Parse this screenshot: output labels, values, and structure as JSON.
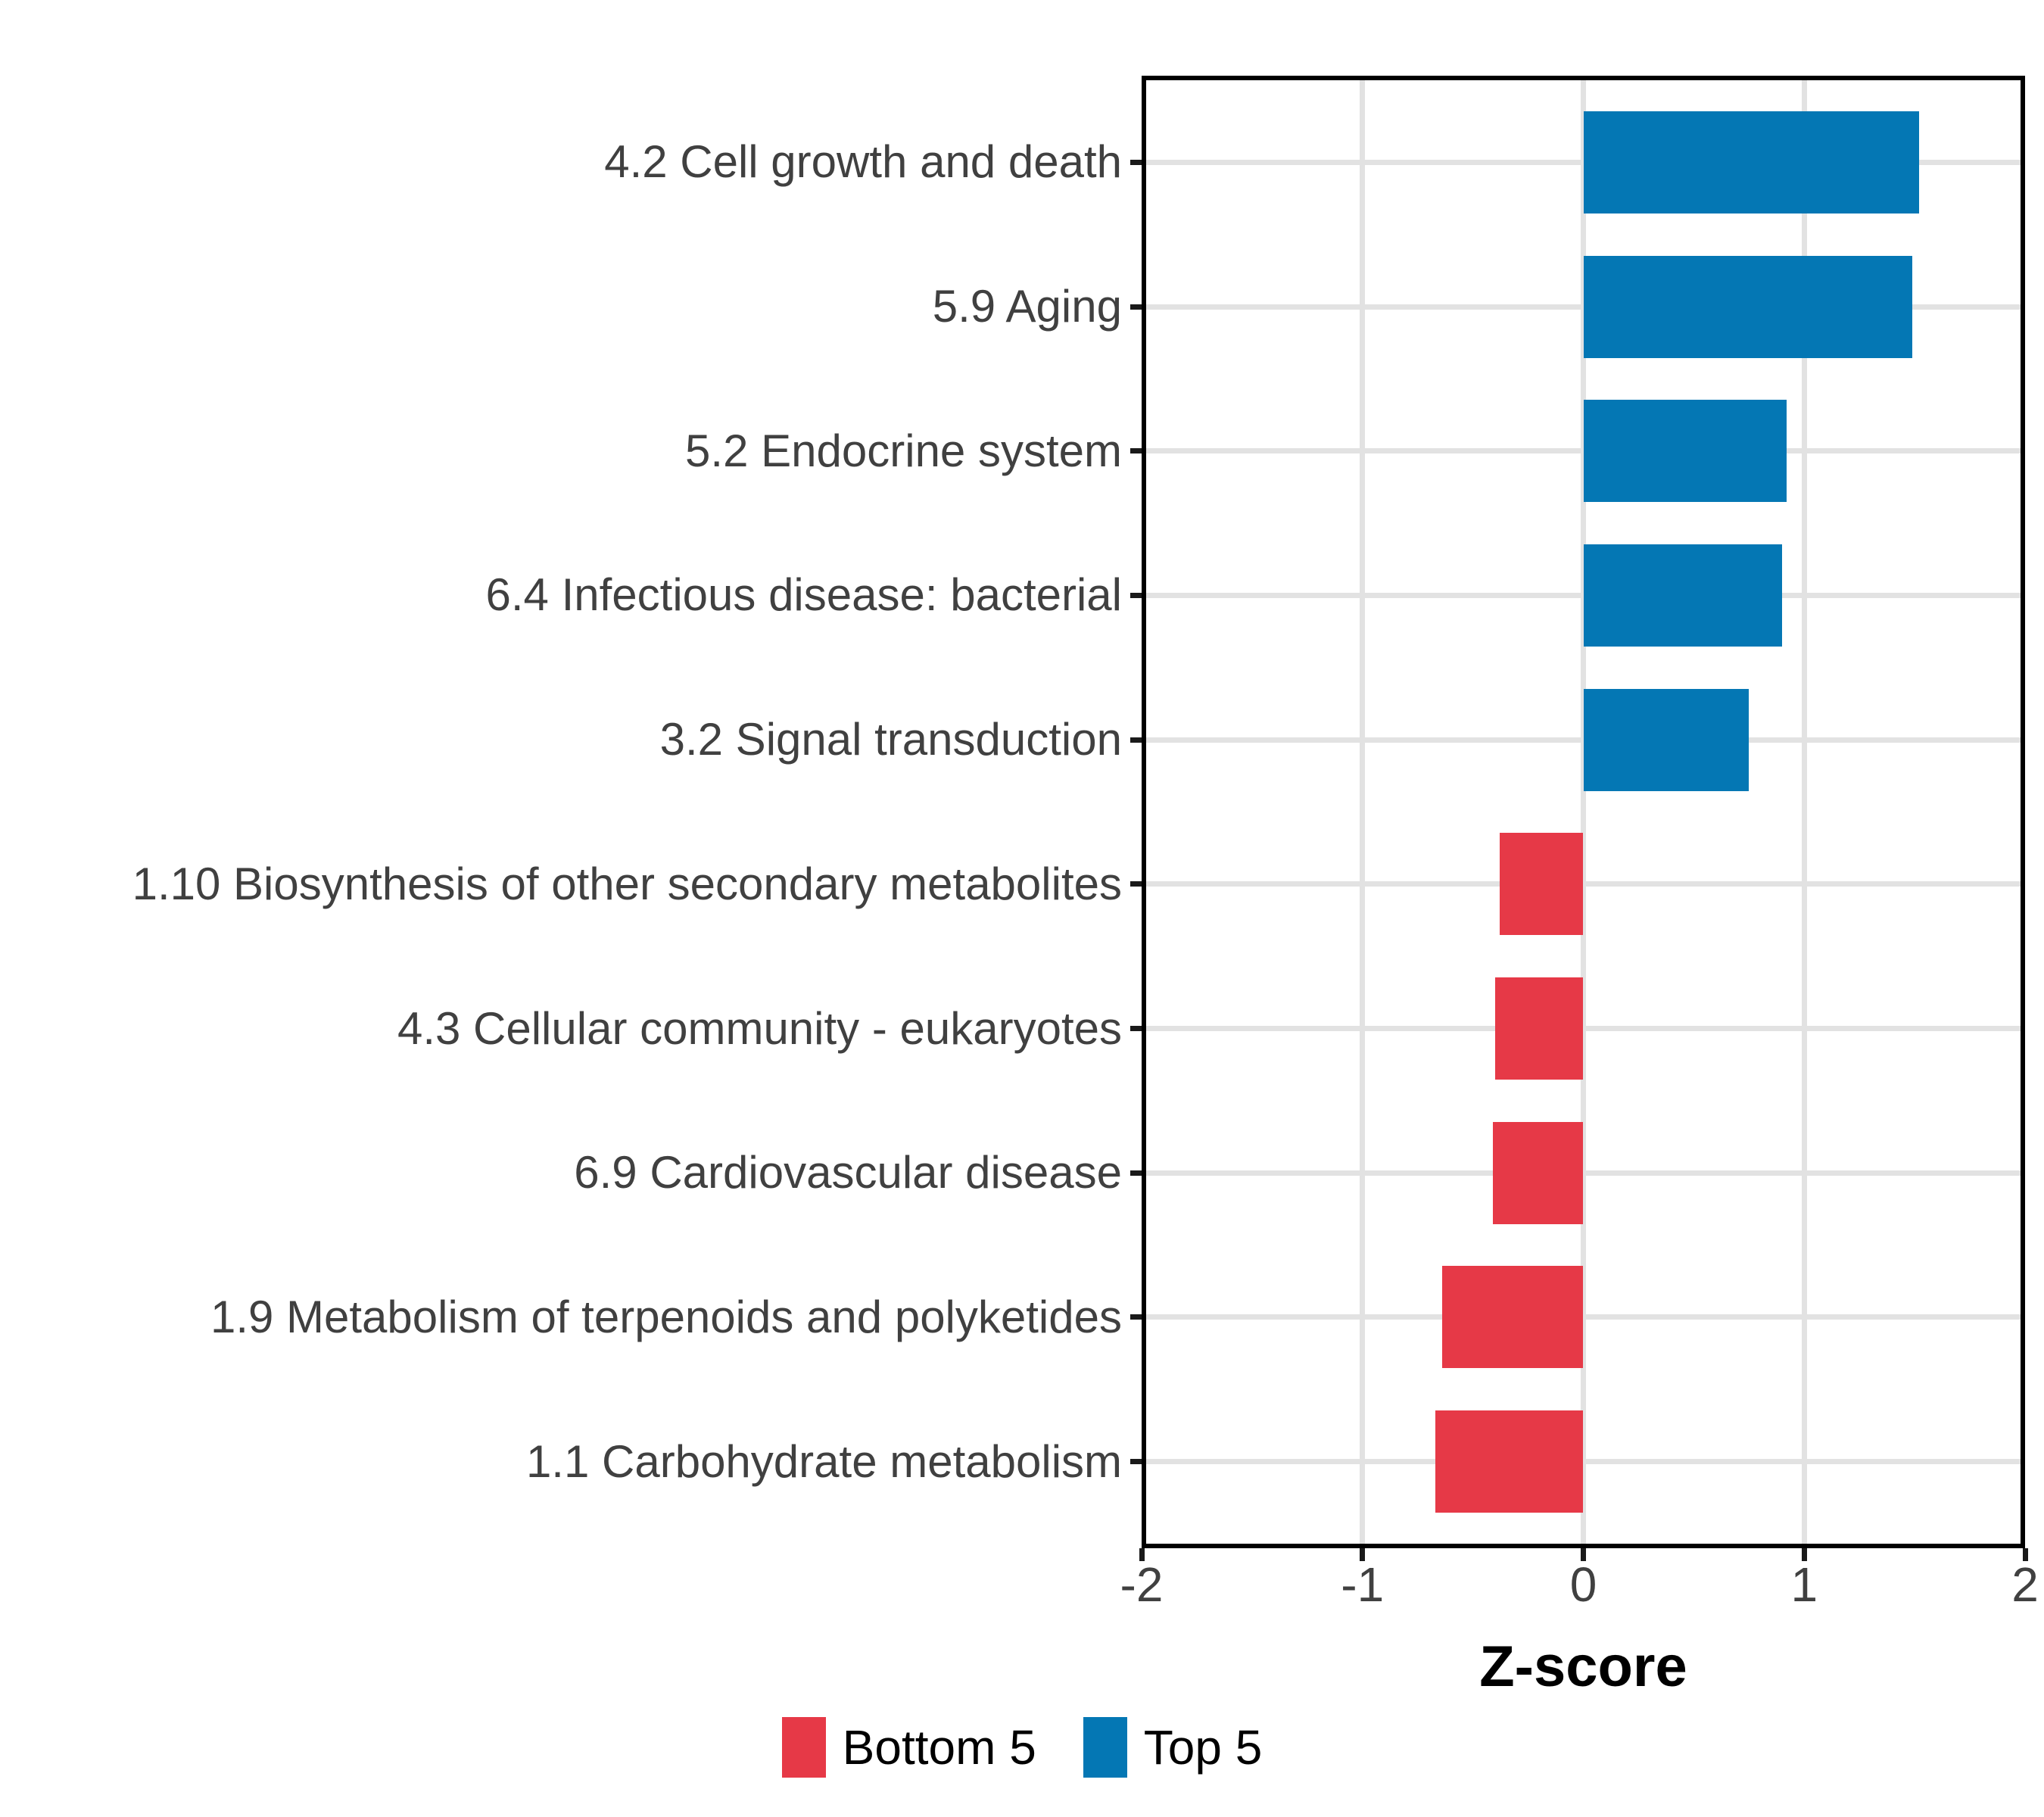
{
  "chart_data": {
    "type": "bar",
    "orientation": "horizontal",
    "title": "",
    "xlabel": "Z-score",
    "ylabel": "",
    "xlim": [
      -2,
      2
    ],
    "xticks": [
      "-2",
      "-1",
      "0",
      "1",
      "2"
    ],
    "xtick_values": [
      -2,
      -1,
      0,
      1,
      2
    ],
    "grid": "major-only",
    "legend_position": "bottom",
    "categories": [
      "4.2 Cell growth and death",
      "5.9 Aging",
      "5.2 Endocrine system",
      "6.4 Infectious disease: bacterial",
      "3.2 Signal transduction",
      "1.10 Biosynthesis of other secondary metabolites",
      "4.3 Cellular community - eukaryotes",
      "6.9 Cardiovascular disease",
      "1.9 Metabolism of terpenoids and polyketides",
      "1.1 Carbohydrate metabolism"
    ],
    "values": [
      1.52,
      1.49,
      0.92,
      0.9,
      0.75,
      -0.38,
      -0.4,
      -0.41,
      -0.64,
      -0.67
    ],
    "groups": [
      "Top 5",
      "Top 5",
      "Top 5",
      "Top 5",
      "Top 5",
      "Bottom 5",
      "Bottom 5",
      "Bottom 5",
      "Bottom 5",
      "Bottom 5"
    ],
    "legend": [
      {
        "label": "Bottom 5",
        "color": "#E63947"
      },
      {
        "label": "Top 5",
        "color": "#0477B4"
      }
    ],
    "colors": {
      "top5": "#0477B4",
      "bottom5": "#E63947",
      "gridline": "#E2E2E2",
      "axis_text": "#404040",
      "tick_mark": "#1a1a1a",
      "panel_border": "#000000"
    }
  }
}
